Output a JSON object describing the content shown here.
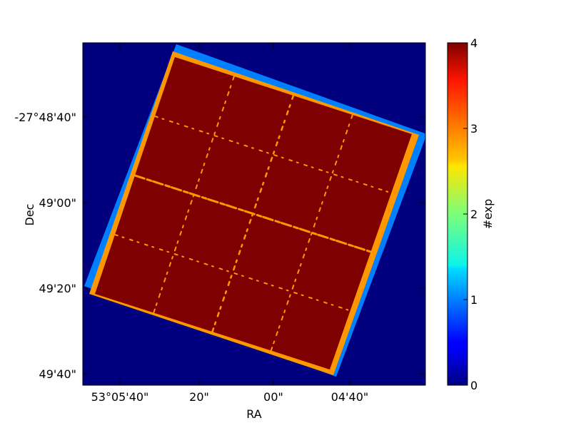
{
  "chart_data": {
    "type": "heatmap",
    "title": "",
    "xlabel": "RA",
    "ylabel": "Dec",
    "x_ticks": [
      "53°05'40\"",
      "20\"",
      "00\"",
      "04'40\""
    ],
    "y_ticks": [
      "-27°48'40\"",
      "49'00\"",
      "49'20\"",
      "49'40\""
    ],
    "colorbar": {
      "label": "#exp",
      "range": [
        0,
        4
      ],
      "ticks": [
        "0",
        "1",
        "2",
        "3",
        "4"
      ],
      "colormap": "jet"
    },
    "exposure_levels": [
      {
        "exp": 0,
        "region": "background",
        "color": "#00007f"
      },
      {
        "exp": 1,
        "region": "outer footprint edge",
        "color": "#0080ff"
      },
      {
        "exp": 3,
        "region": "inner edge band and chip gaps",
        "color": "#ff9800"
      },
      {
        "exp": 4,
        "region": "field interior",
        "color": "#7f0000"
      }
    ],
    "grid": false
  }
}
